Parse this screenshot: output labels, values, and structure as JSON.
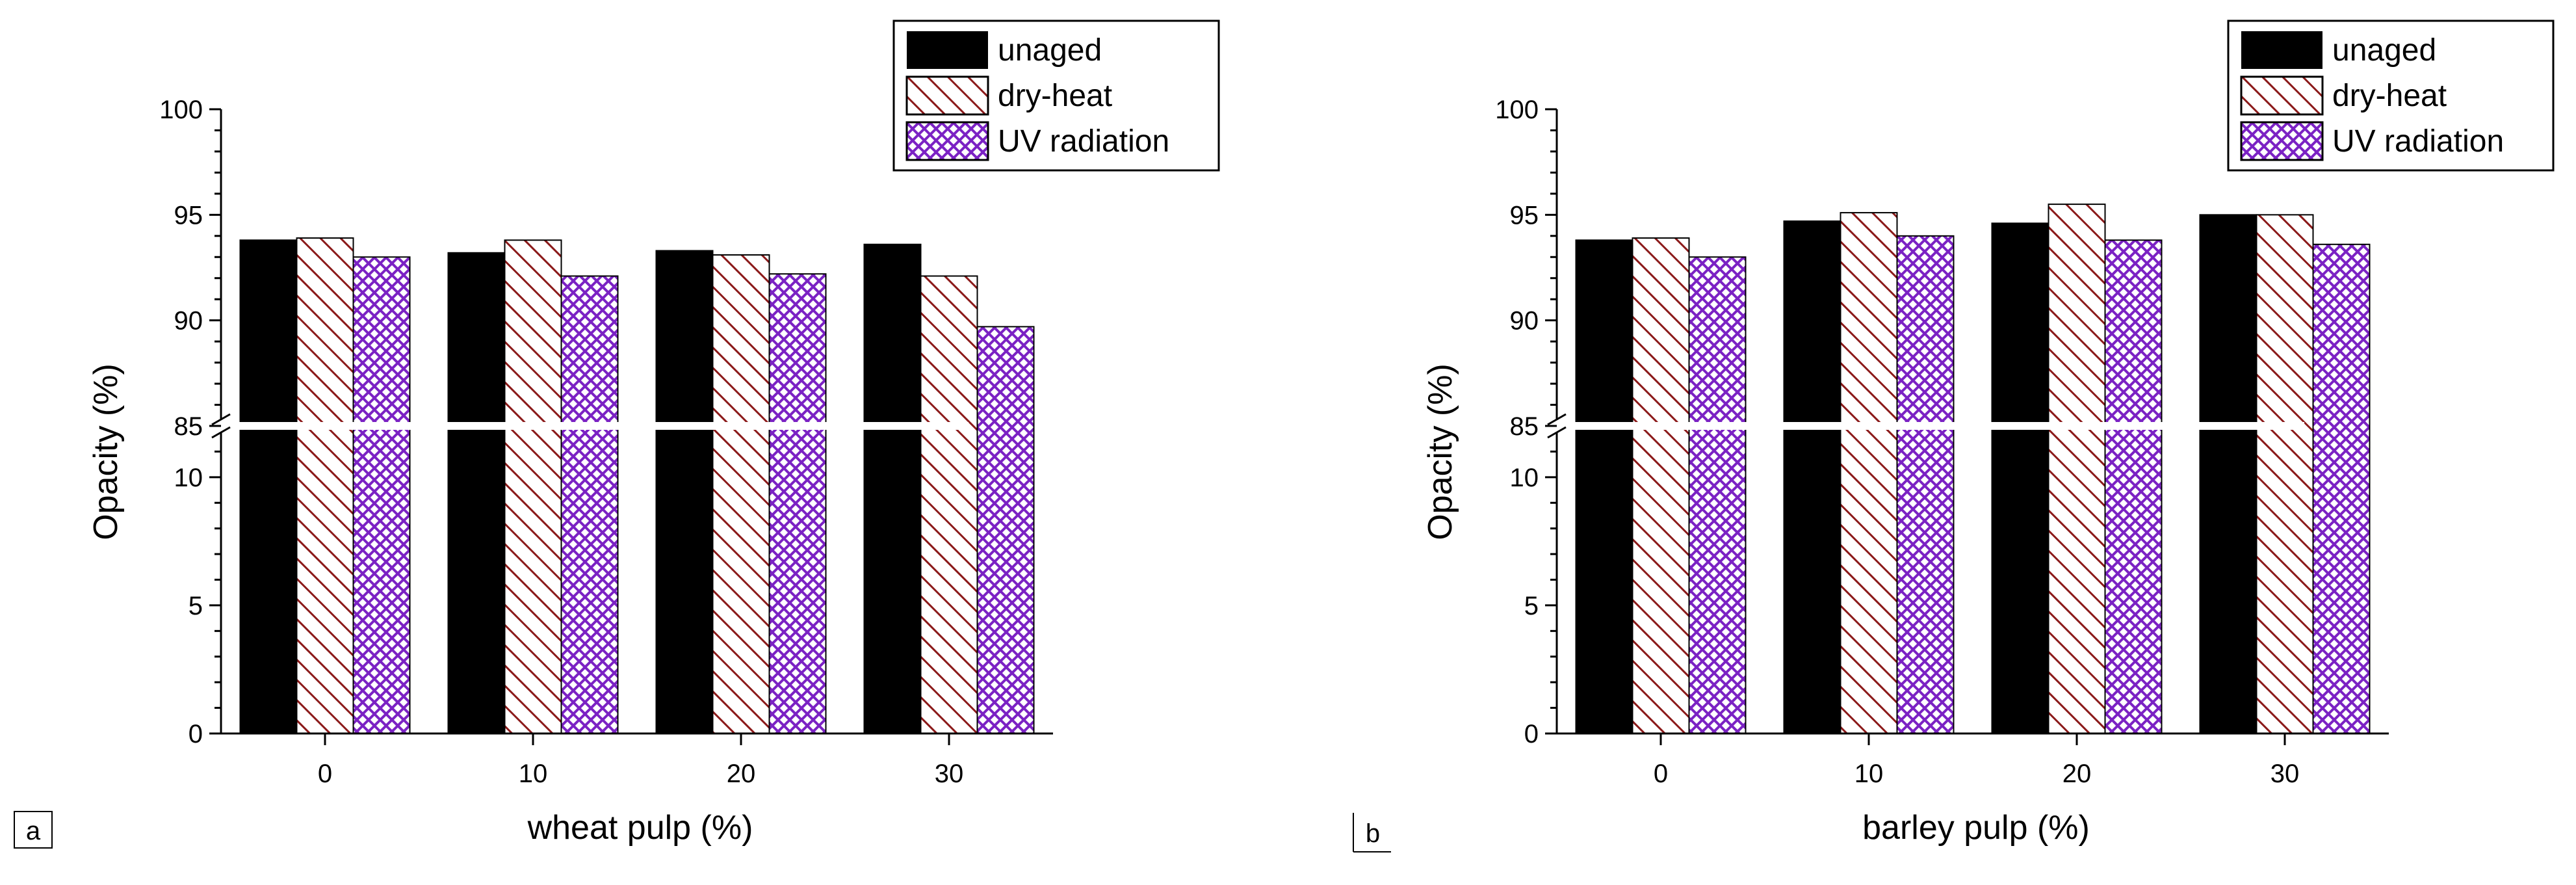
{
  "colors": {
    "unaged": "#000000",
    "dry_heat": "#8b1a1a",
    "uv": "#7b22c4"
  },
  "chart_data": [
    {
      "type": "bar",
      "panel_label": "a",
      "title": "",
      "xlabel": "wheat pulp (%)",
      "ylabel": "Opacity (%)",
      "categories": [
        "0",
        "10",
        "20",
        "30"
      ],
      "y_axis_break": [
        12,
        85
      ],
      "ylim_lower": [
        0,
        12
      ],
      "ylim_upper": [
        85,
        100
      ],
      "yticks": [
        "0",
        "5",
        "10",
        "85",
        "90",
        "95",
        "100"
      ],
      "legend": [
        "unaged",
        "dry-heat",
        "UV radiation"
      ],
      "legend_position": "top-right",
      "series": [
        {
          "name": "unaged",
          "values": [
            93.8,
            93.2,
            93.3,
            93.6
          ]
        },
        {
          "name": "dry-heat",
          "values": [
            93.9,
            93.8,
            93.1,
            92.1
          ]
        },
        {
          "name": "UV radiation",
          "values": [
            93.0,
            92.1,
            92.2,
            89.7
          ]
        }
      ]
    },
    {
      "type": "bar",
      "panel_label": "b",
      "title": "",
      "xlabel": "barley pulp (%)",
      "ylabel": "Opacity (%)",
      "categories": [
        "0",
        "10",
        "20",
        "30"
      ],
      "y_axis_break": [
        12,
        85
      ],
      "ylim_lower": [
        0,
        12
      ],
      "ylim_upper": [
        85,
        100
      ],
      "yticks": [
        "0",
        "5",
        "10",
        "85",
        "90",
        "95",
        "100"
      ],
      "legend": [
        "unaged",
        "dry-heat",
        "UV radiation"
      ],
      "legend_position": "top-right",
      "series": [
        {
          "name": "unaged",
          "values": [
            93.8,
            94.7,
            94.6,
            95.0
          ]
        },
        {
          "name": "dry-heat",
          "values": [
            93.9,
            95.1,
            95.5,
            95.0
          ]
        },
        {
          "name": "UV radiation",
          "values": [
            93.0,
            94.0,
            93.8,
            93.6
          ]
        }
      ]
    }
  ]
}
